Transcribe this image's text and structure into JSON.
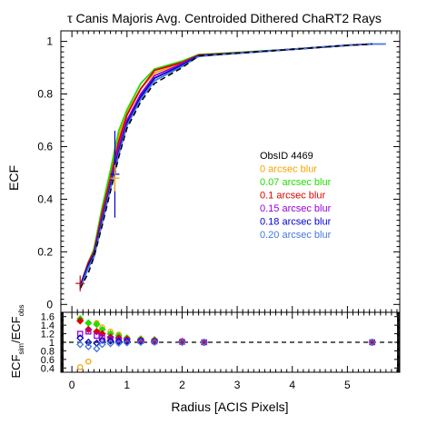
{
  "chart_data": [
    {
      "type": "line",
      "title_greek": "τ",
      "title_text": " Canis Majoris Avg. Centroided Dithered ChaRT2 Rays",
      "ylabel": "ECF",
      "xlim": [
        -0.2,
        5.95
      ],
      "ylim": [
        -0.03,
        1.04
      ],
      "y_ticks": [
        "0",
        "0.2",
        "0.4",
        "0.6",
        "0.8",
        "1"
      ],
      "legend_header": "ObsID 4469",
      "legend_position": "middle-right",
      "series": [
        {
          "name": "0 arcsec blur",
          "color": "#f5a300",
          "x": [
            0.15,
            0.3,
            0.4,
            0.55,
            0.7,
            0.85,
            1.0,
            1.25,
            1.5,
            2.0,
            2.3,
            3.0,
            4.0,
            5.0,
            5.45
          ],
          "y": [
            0.07,
            0.16,
            0.2,
            0.36,
            0.5,
            0.64,
            0.73,
            0.82,
            0.88,
            0.92,
            0.945,
            0.955,
            0.97,
            0.985,
            0.99
          ]
        },
        {
          "name": "0.07 arcsec blur",
          "color": "#22dd00",
          "x": [
            0.15,
            0.3,
            0.4,
            0.55,
            0.7,
            0.85,
            1.0,
            1.25,
            1.5,
            2.0,
            2.3,
            3.0,
            4.0,
            5.0,
            5.45
          ],
          "y": [
            0.07,
            0.16,
            0.21,
            0.37,
            0.51,
            0.66,
            0.74,
            0.84,
            0.895,
            0.925,
            0.95,
            0.958,
            0.97,
            0.985,
            0.99
          ]
        },
        {
          "name": "0.1 arcsec blur",
          "color": "#dd0000",
          "x": [
            0.15,
            0.3,
            0.4,
            0.55,
            0.7,
            0.85,
            1.0,
            1.25,
            1.5,
            2.0,
            2.3,
            3.0,
            4.0,
            5.0,
            5.45
          ],
          "y": [
            0.07,
            0.16,
            0.2,
            0.35,
            0.48,
            0.62,
            0.72,
            0.82,
            0.89,
            0.92,
            0.948,
            0.956,
            0.97,
            0.985,
            0.99
          ]
        },
        {
          "name": "0.15 arcsec blur",
          "color": "#9900dd",
          "x": [
            0.15,
            0.3,
            0.4,
            0.55,
            0.7,
            0.85,
            1.0,
            1.25,
            1.5,
            2.0,
            2.3,
            3.0,
            4.0,
            5.0,
            5.45
          ],
          "y": [
            0.07,
            0.15,
            0.19,
            0.33,
            0.46,
            0.6,
            0.7,
            0.8,
            0.87,
            0.915,
            0.945,
            0.955,
            0.97,
            0.985,
            0.99
          ]
        },
        {
          "name": "0.18 arcsec blur",
          "color": "#0000cc",
          "x": [
            0.15,
            0.3,
            0.4,
            0.55,
            0.7,
            0.85,
            1.0,
            1.25,
            1.5,
            2.0,
            2.3,
            3.0,
            4.0,
            5.0,
            5.45
          ],
          "y": [
            0.07,
            0.15,
            0.19,
            0.32,
            0.45,
            0.58,
            0.69,
            0.79,
            0.86,
            0.91,
            0.945,
            0.955,
            0.97,
            0.985,
            0.99
          ]
        },
        {
          "name": "0.20 arcsec blur",
          "color": "#4477dd",
          "x": [
            0.15,
            0.3,
            0.4,
            0.55,
            0.7,
            0.85,
            1.0,
            1.25,
            1.5,
            2.0,
            2.3,
            3.0,
            4.0,
            5.0,
            5.45,
            5.7
          ],
          "y": [
            0.06,
            0.14,
            0.18,
            0.31,
            0.44,
            0.57,
            0.68,
            0.78,
            0.85,
            0.905,
            0.943,
            0.955,
            0.97,
            0.985,
            0.99,
            0.99
          ]
        }
      ],
      "observed": {
        "color": "#000000",
        "x": [
          0.15,
          0.3,
          0.4,
          0.55,
          0.7,
          0.85,
          1.0,
          1.25,
          1.5,
          2.0,
          2.3,
          3.0,
          4.0,
          5.0,
          5.45
        ],
        "y": [
          0.06,
          0.12,
          0.18,
          0.3,
          0.43,
          0.56,
          0.67,
          0.77,
          0.84,
          0.9,
          0.945,
          0.955,
          0.97,
          0.985,
          0.99
        ],
        "errorbars": [
          {
            "x": 0.15,
            "lo": 0.05,
            "hi": 0.11,
            "color": "#cc0000"
          },
          {
            "x": 0.78,
            "lo": 0.33,
            "hi": 0.66,
            "color": "#0000cc"
          },
          {
            "x": 0.78,
            "lo": 0.43,
            "hi": 0.53,
            "color": "#f5a300"
          }
        ]
      }
    },
    {
      "type": "scatter",
      "ylabel_main": "ECF",
      "ylabel_sub_num": "sim",
      "ylabel_mid": "/ECF",
      "ylabel_sub_den": "obs",
      "xlabel": "Radius [ACIS Pixels]",
      "xlim": [
        -0.2,
        5.95
      ],
      "ylim": [
        0.3,
        1.7
      ],
      "x_ticks": [
        "0",
        "1",
        "2",
        "3",
        "4",
        "5"
      ],
      "y_ticks": [
        "0.4",
        "0.6",
        "0.8",
        "1",
        "1.2",
        "1.4",
        "1.6"
      ],
      "reference_line": 1.0,
      "series": [
        {
          "name": "0 arcsec blur",
          "color": "#f5a300",
          "marker": "circle-open",
          "x": [
            0.15,
            0.3,
            0.45,
            0.55,
            0.7,
            0.85,
            1.0,
            1.25,
            1.5,
            2.0,
            2.4,
            5.45
          ],
          "y": [
            0.42,
            0.55,
            1.45,
            1.35,
            1.25,
            1.18,
            1.1,
            1.07,
            1.05,
            1.02,
            1.0,
            1.0
          ]
        },
        {
          "name": "0.07 arcsec blur",
          "color": "#22dd00",
          "marker": "diamond",
          "x": [
            0.15,
            0.3,
            0.45,
            0.55,
            0.7,
            0.85,
            1.0,
            1.25,
            1.5,
            2.0,
            2.4,
            5.45
          ],
          "y": [
            1.55,
            1.45,
            1.42,
            1.3,
            1.2,
            1.15,
            1.1,
            1.08,
            1.06,
            1.02,
            1.0,
            1.0
          ]
        },
        {
          "name": "0.1 arcsec blur",
          "color": "#dd0000",
          "marker": "diamond",
          "x": [
            0.15,
            0.3,
            0.45,
            0.55,
            0.7,
            0.85,
            1.0,
            1.25,
            1.5,
            2.0,
            2.4,
            5.45
          ],
          "y": [
            1.5,
            1.3,
            1.25,
            1.2,
            1.12,
            1.1,
            1.07,
            1.05,
            1.04,
            1.02,
            1.0,
            1.0
          ]
        },
        {
          "name": "0.15 arcsec blur",
          "color": "#9900dd",
          "marker": "square-open",
          "x": [
            0.15,
            0.3,
            0.45,
            0.55,
            0.7,
            0.85,
            1.0,
            1.25,
            1.5,
            2.0,
            2.4,
            5.45
          ],
          "y": [
            1.2,
            1.25,
            1.15,
            1.12,
            1.08,
            1.05,
            1.04,
            1.03,
            1.02,
            1.01,
            1.0,
            1.0
          ]
        },
        {
          "name": "0.18 arcsec blur",
          "color": "#0000cc",
          "marker": "diamond-open",
          "x": [
            0.15,
            0.3,
            0.45,
            0.55,
            0.7,
            0.85,
            1.0,
            1.25,
            1.5,
            2.0,
            2.4,
            5.45
          ],
          "y": [
            1.1,
            1.0,
            0.98,
            1.05,
            1.03,
            1.02,
            1.02,
            1.02,
            1.01,
            1.0,
            1.0,
            1.0
          ]
        },
        {
          "name": "0.20 arcsec blur",
          "color": "#4477dd",
          "marker": "diamond-open",
          "x": [
            0.15,
            0.3,
            0.45,
            0.55,
            0.7,
            0.85,
            1.0,
            1.25,
            1.5,
            2.0,
            2.4,
            5.45
          ],
          "y": [
            0.95,
            0.9,
            0.85,
            0.95,
            0.97,
            0.98,
            0.99,
            1.0,
            1.0,
            1.0,
            1.0,
            1.0
          ]
        }
      ]
    }
  ]
}
